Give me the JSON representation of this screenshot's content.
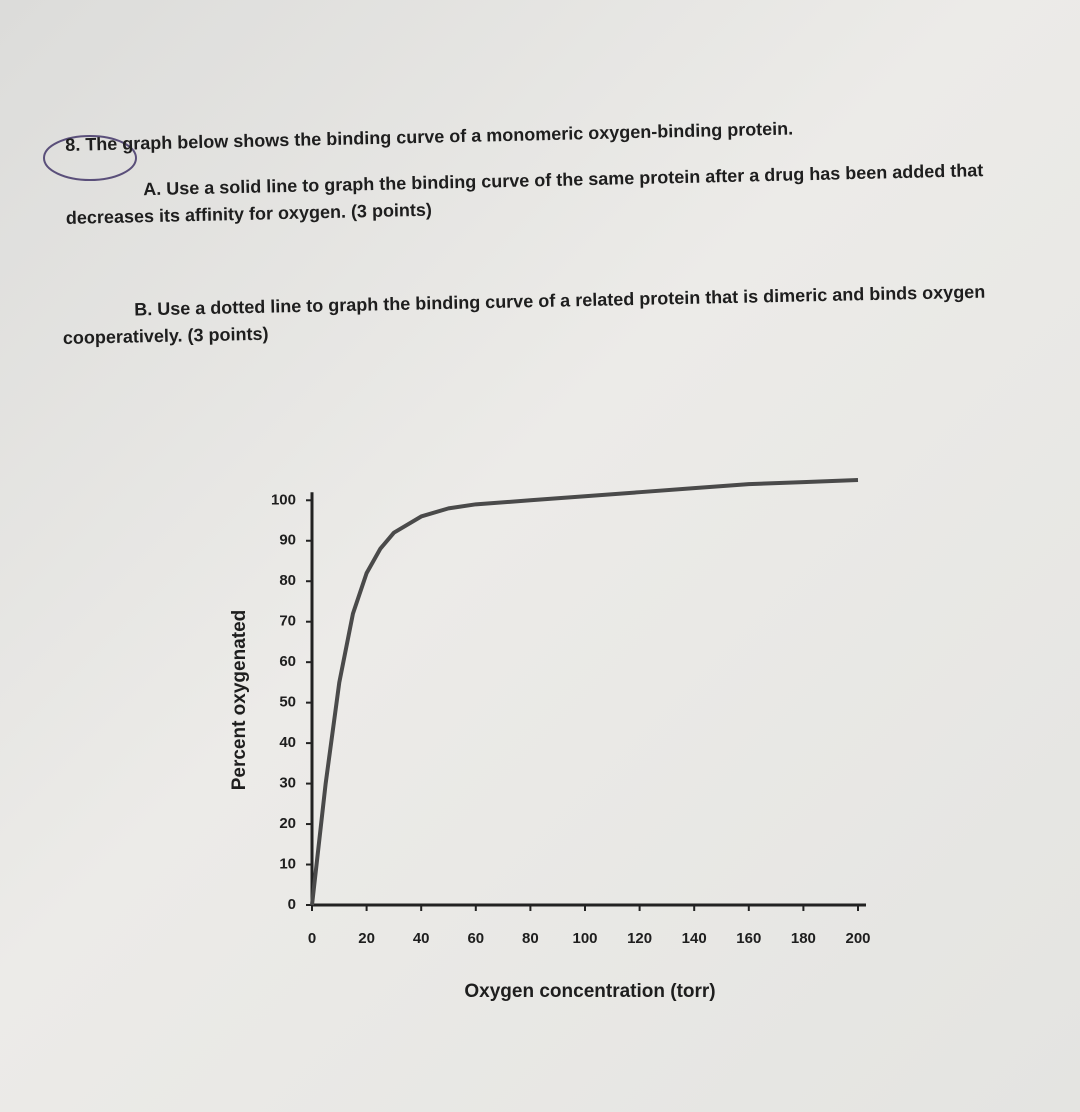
{
  "question": {
    "stem": "8. The graph below shows the binding curve of a monomeric oxygen-binding protein.",
    "part_a": "A. Use a solid line to graph the binding curve of the same protein after a drug has been added that decreases its affinity for oxygen. (3 points)",
    "part_b": "B. Use a dotted line to graph the binding curve of a related protein that is dimeric and binds oxygen cooperatively. (3 points)"
  },
  "chart_data": {
    "type": "line",
    "x_label": "Oxygen concentration (torr)",
    "y_label": "Percent oxygenated",
    "x": [
      0,
      5,
      10,
      15,
      20,
      25,
      30,
      40,
      50,
      60,
      80,
      100,
      120,
      140,
      160,
      180,
      200
    ],
    "series": [
      {
        "name": "Monomeric protein",
        "color": "#4a4a4a",
        "values": [
          0,
          30,
          55,
          72,
          82,
          88,
          92,
          96,
          98,
          99,
          100,
          101,
          102,
          103,
          104,
          104.5,
          105
        ]
      }
    ],
    "xlim": [
      0,
      200
    ],
    "xticks": [
      0,
      20,
      40,
      60,
      80,
      100,
      120,
      140,
      160,
      180,
      200
    ],
    "ylim": [
      0,
      106
    ],
    "yticks": [
      0,
      10,
      20,
      30,
      40,
      50,
      60,
      70,
      80,
      90,
      100
    ]
  }
}
